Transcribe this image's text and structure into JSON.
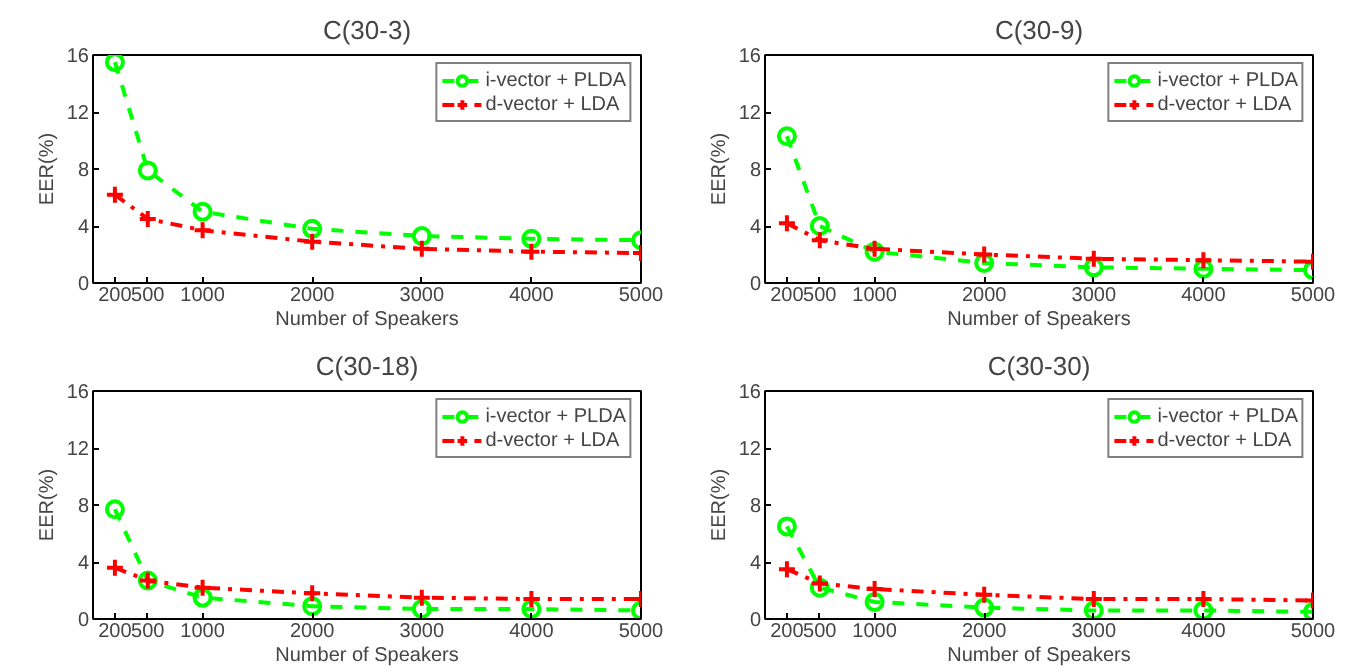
{
  "chart_data": [
    {
      "type": "line",
      "title": "C(30-3)",
      "xlabel": "Number of Speakers",
      "ylabel": "EER(%)",
      "x": [
        200,
        500,
        1000,
        2000,
        3000,
        4000,
        5000
      ],
      "xlim": [
        0,
        5000
      ],
      "xticks": [
        200,
        500,
        1000,
        2000,
        3000,
        4000,
        5000
      ],
      "ylim": [
        0,
        16
      ],
      "yticks": [
        0,
        4,
        8,
        12,
        16
      ],
      "grid": false,
      "legend": "top right",
      "series": [
        {
          "name": "i-vector + PLDA",
          "color": "#00ff00",
          "marker": "circle",
          "line_style": "dashed",
          "values": [
            15.5,
            7.9,
            5.0,
            3.8,
            3.3,
            3.1,
            3.0
          ]
        },
        {
          "name": "d-vector + LDA",
          "color": "#ff0000",
          "marker": "cross",
          "line_style": "dashdot",
          "values": [
            6.2,
            4.5,
            3.7,
            2.9,
            2.4,
            2.2,
            2.1
          ]
        }
      ]
    },
    {
      "type": "line",
      "title": "C(30-9)",
      "xlabel": "Number of Speakers",
      "ylabel": "EER(%)",
      "x": [
        200,
        500,
        1000,
        2000,
        3000,
        4000,
        5000
      ],
      "xlim": [
        0,
        5000
      ],
      "xticks": [
        200,
        500,
        1000,
        2000,
        3000,
        4000,
        5000
      ],
      "ylim": [
        0,
        16
      ],
      "yticks": [
        0,
        4,
        8,
        12,
        16
      ],
      "grid": false,
      "legend": "top right",
      "series": [
        {
          "name": "i-vector + PLDA",
          "color": "#00ff00",
          "marker": "circle",
          "line_style": "dashed",
          "values": [
            10.3,
            4.0,
            2.2,
            1.4,
            1.1,
            1.0,
            0.9
          ]
        },
        {
          "name": "d-vector + LDA",
          "color": "#ff0000",
          "marker": "cross",
          "line_style": "dashdot",
          "values": [
            4.2,
            3.0,
            2.4,
            2.0,
            1.7,
            1.6,
            1.5
          ]
        }
      ]
    },
    {
      "type": "line",
      "title": "C(30-18)",
      "xlabel": "Number of Speakers",
      "ylabel": "EER(%)",
      "x": [
        200,
        500,
        1000,
        2000,
        3000,
        4000,
        5000
      ],
      "xlim": [
        0,
        5000
      ],
      "xticks": [
        200,
        500,
        1000,
        2000,
        3000,
        4000,
        5000
      ],
      "ylim": [
        0,
        16
      ],
      "yticks": [
        0,
        4,
        8,
        12,
        16
      ],
      "grid": false,
      "legend": "top right",
      "series": [
        {
          "name": "i-vector + PLDA",
          "color": "#00ff00",
          "marker": "circle",
          "line_style": "dashed",
          "values": [
            7.7,
            2.7,
            1.5,
            0.9,
            0.7,
            0.7,
            0.6
          ]
        },
        {
          "name": "d-vector + LDA",
          "color": "#ff0000",
          "marker": "cross",
          "line_style": "dashdot",
          "values": [
            3.6,
            2.7,
            2.2,
            1.8,
            1.5,
            1.4,
            1.4
          ]
        }
      ]
    },
    {
      "type": "line",
      "title": "C(30-30)",
      "xlabel": "Number of Speakers",
      "ylabel": "EER(%)",
      "x": [
        200,
        500,
        1000,
        2000,
        3000,
        4000,
        5000
      ],
      "xlim": [
        0,
        5000
      ],
      "xticks": [
        200,
        500,
        1000,
        2000,
        3000,
        4000,
        5000
      ],
      "ylim": [
        0,
        16
      ],
      "yticks": [
        0,
        4,
        8,
        12,
        16
      ],
      "grid": false,
      "legend": "top right",
      "series": [
        {
          "name": "i-vector + PLDA",
          "color": "#00ff00",
          "marker": "circle",
          "line_style": "dashed",
          "values": [
            6.5,
            2.2,
            1.2,
            0.8,
            0.6,
            0.6,
            0.5
          ]
        },
        {
          "name": "d-vector + LDA",
          "color": "#ff0000",
          "marker": "cross",
          "line_style": "dashdot",
          "values": [
            3.5,
            2.5,
            2.1,
            1.7,
            1.4,
            1.4,
            1.3
          ]
        }
      ]
    }
  ]
}
